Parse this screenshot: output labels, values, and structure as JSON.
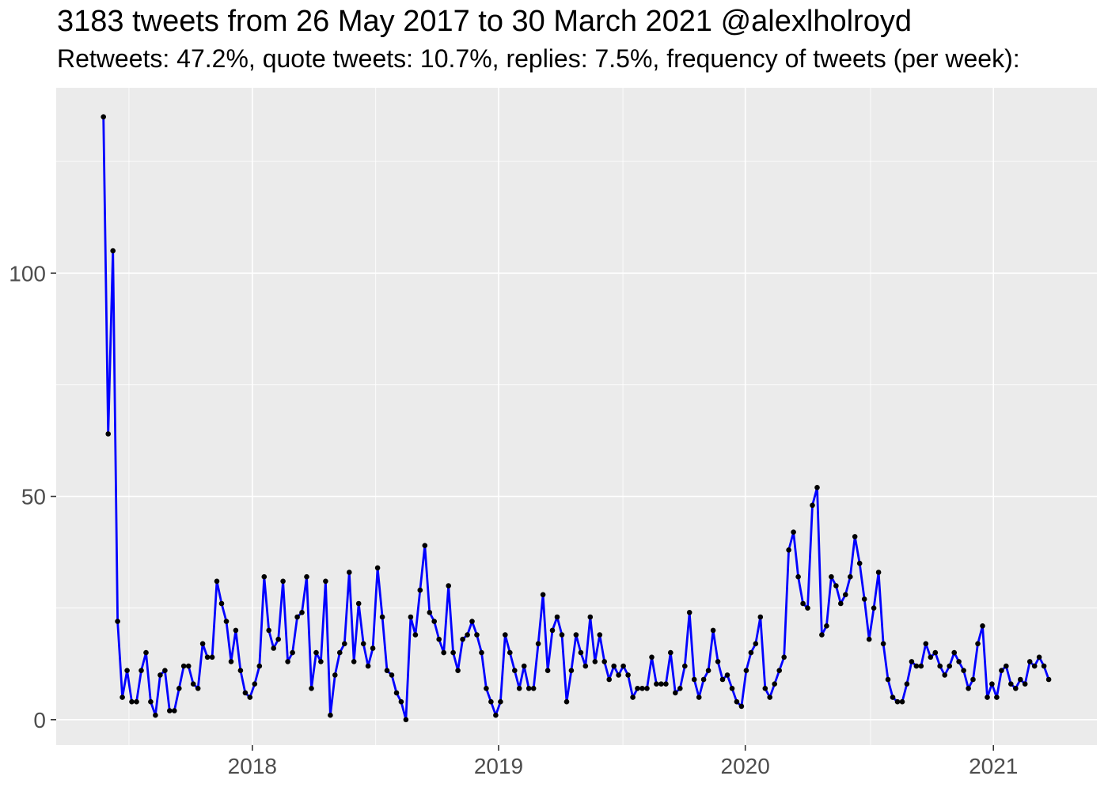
{
  "header": {
    "title": "3183 tweets from 26 May 2017 to 30 March 2021 @alexlholroyd",
    "subtitle": "Retweets: 47.2%, quote tweets: 10.7%, replies: 7.5%, frequency of tweets (per week):"
  },
  "chart_data": {
    "type": "line",
    "title": "3183 tweets from 26 May 2017 to 30 March 2021 @alexlholroyd",
    "subtitle": "Retweets: 47.2%, quote tweets: 10.7%, replies: 7.5%, frequency of tweets (per week):",
    "xlabel": "",
    "ylabel": "",
    "legend": "none",
    "grid": "on",
    "x_unit": "week",
    "date_range": {
      "start": "26 May 2017",
      "end": "30 March 2021"
    },
    "total_tweets": "3183",
    "retweets_pct": "47.2%",
    "quote_tweets_pct": "10.7%",
    "replies_pct": "7.5%",
    "xlim_weeks": [
      -10,
      210.2
    ],
    "ylim": [
      -5.7,
      141.5
    ],
    "x_ticks": [
      {
        "label": "2018",
        "week": 31.5
      },
      {
        "label": "2019",
        "week": 83.6
      },
      {
        "label": "2020",
        "week": 135.8
      },
      {
        "label": "2021",
        "week": 188.3
      }
    ],
    "x_minor_weeks": [
      5.4,
      57.6,
      109.9,
      162.3
    ],
    "y_ticks": [
      {
        "label": "0",
        "value": 0
      },
      {
        "label": "50",
        "value": 50
      },
      {
        "label": "100",
        "value": 100
      }
    ],
    "y_minor_values": [
      25,
      75,
      125
    ],
    "series": [
      {
        "name": "tweets-per-week",
        "values": [
          135,
          64,
          105,
          22,
          5,
          11,
          4,
          4,
          11,
          15,
          4,
          1,
          10,
          11,
          2,
          2,
          7,
          12,
          12,
          8,
          7,
          17,
          14,
          14,
          31,
          26,
          22,
          13,
          20,
          11,
          6,
          5,
          8,
          12,
          32,
          20,
          16,
          18,
          31,
          13,
          15,
          23,
          24,
          32,
          7,
          15,
          13,
          31,
          1,
          10,
          15,
          17,
          33,
          13,
          26,
          17,
          12,
          16,
          34,
          23,
          11,
          10,
          6,
          4,
          0,
          23,
          19,
          29,
          39,
          24,
          22,
          18,
          15,
          30,
          15,
          11,
          18,
          19,
          22,
          19,
          15,
          7,
          4,
          1,
          4,
          19,
          15,
          11,
          7,
          12,
          7,
          7,
          17,
          28,
          11,
          20,
          23,
          19,
          4,
          11,
          19,
          15,
          12,
          23,
          13,
          19,
          13,
          9,
          12,
          10,
          12,
          10,
          5,
          7,
          7,
          7,
          14,
          8,
          8,
          8,
          15,
          6,
          7,
          12,
          24,
          9,
          5,
          9,
          11,
          20,
          13,
          9,
          10,
          7,
          4,
          3,
          11,
          15,
          17,
          23,
          7,
          5,
          8,
          11,
          14,
          38,
          42,
          32,
          26,
          25,
          48,
          52,
          19,
          21,
          32,
          30,
          26,
          28,
          32,
          41,
          35,
          27,
          18,
          25,
          33,
          17,
          9,
          5,
          4,
          4,
          8,
          13,
          12,
          12,
          17,
          14,
          15,
          12,
          10,
          12,
          15,
          13,
          11,
          7,
          9,
          17,
          21,
          5,
          8,
          5,
          11,
          12,
          8,
          7,
          9,
          8,
          13,
          12,
          14,
          12,
          9
        ]
      }
    ],
    "colors": {
      "line": "#0000FF",
      "point": "#000000",
      "panel_bg": "#EBEBEB",
      "grid": "#FFFFFF",
      "axis_text": "#4D4D4D",
      "tick_mark": "#333333",
      "title_text": "#000000",
      "page_bg": "#FFFFFF"
    }
  }
}
